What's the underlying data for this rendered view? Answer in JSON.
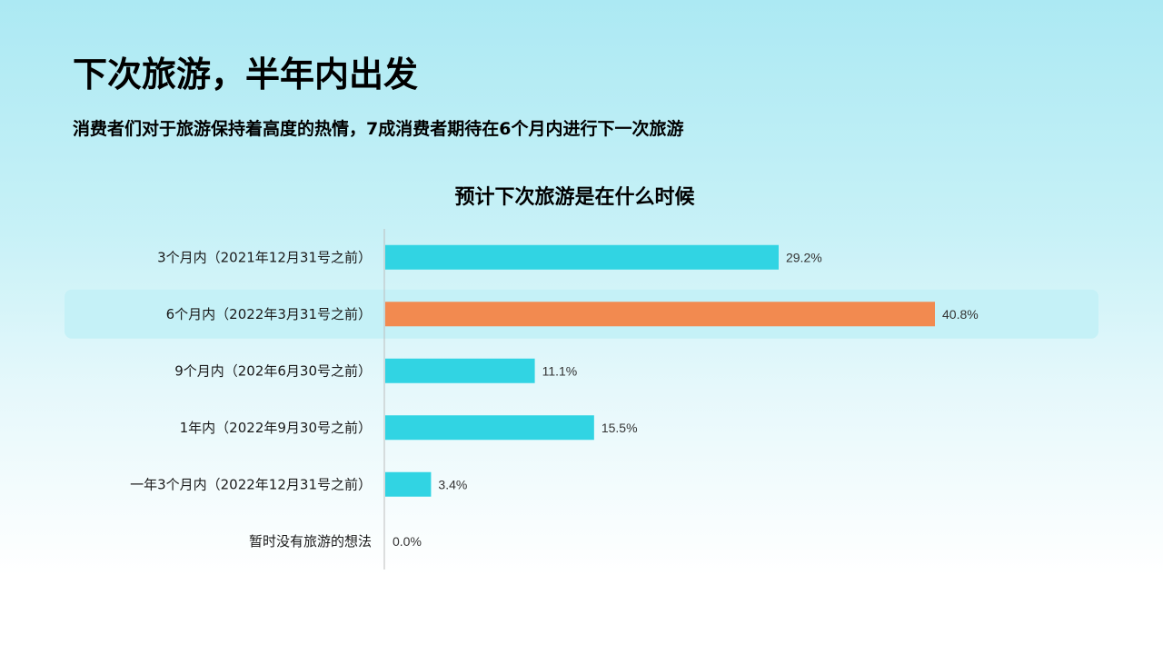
{
  "page": {
    "title": "下次旅游，半年内出发",
    "subtitle": "消费者们对于旅游保持着高度的热情，7成消费者期待在6个月内进行下一次旅游"
  },
  "colors": {
    "bar": "#31d4e3",
    "highlight_bar": "#f28a50",
    "highlight_band": "#c5f1f7",
    "axis": "#bdbdbd"
  },
  "chart_data": {
    "type": "bar",
    "orientation": "horizontal",
    "title": "预计下次旅游是在什么时候",
    "categories": [
      "3个月内（2021年12月31号之前）",
      "6个月内（2022年3月31号之前）",
      "9个月内（202年6月30号之前）",
      "1年内（2022年9月30号之前）",
      "一年3个月内（2022年12月31号之前）",
      "暂时没有旅游的想法"
    ],
    "values": [
      29.2,
      40.8,
      11.1,
      15.5,
      3.4,
      0.0
    ],
    "value_labels": [
      "29.2%",
      "40.8%",
      "11.1%",
      "15.5%",
      "3.4%",
      "0.0%"
    ],
    "highlight_index": 1,
    "xlim": [
      0,
      50
    ],
    "grid": false,
    "legend": "none"
  }
}
